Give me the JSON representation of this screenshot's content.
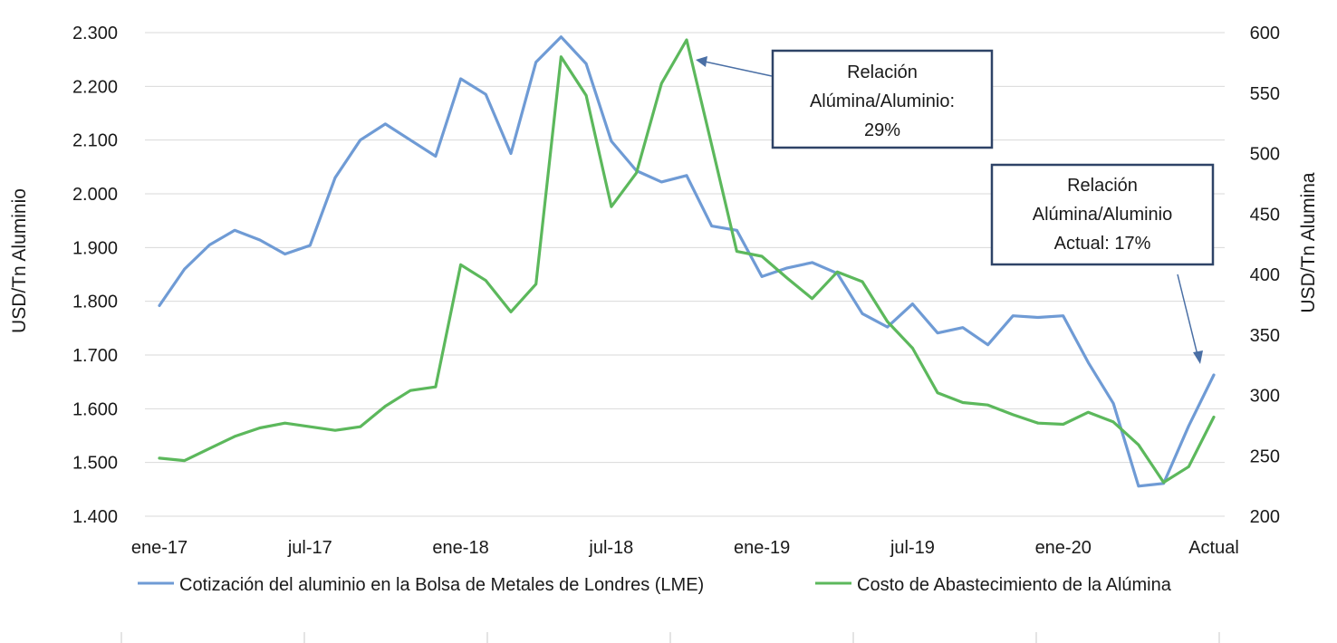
{
  "chart_data": {
    "type": "line",
    "x_tick_labels": [
      "ene-17",
      "jul-17",
      "ene-18",
      "jul-18",
      "ene-19",
      "jul-19",
      "ene-20",
      "Actual"
    ],
    "x": [
      "ene-17",
      "feb-17",
      "mar-17",
      "abr-17",
      "may-17",
      "jun-17",
      "jul-17",
      "ago-17",
      "sep-17",
      "oct-17",
      "nov-17",
      "dic-17",
      "ene-18",
      "feb-18",
      "mar-18",
      "abr-18",
      "may-18",
      "jun-18",
      "jul-18",
      "ago-18",
      "sep-18",
      "oct-18",
      "nov-18",
      "dic-18",
      "ene-19",
      "feb-19",
      "mar-19",
      "abr-19",
      "may-19",
      "jun-19",
      "jul-19",
      "ago-19",
      "sep-19",
      "oct-19",
      "nov-19",
      "dic-19",
      "ene-20",
      "feb-20",
      "mar-20",
      "abr-20",
      "may-20",
      "jun-20",
      "Actual"
    ],
    "ylabel_left": "USD/Tn Aluminio",
    "ylabel_right": "USD/Tn Alumina",
    "y_left_ticks": [
      "1.400",
      "1.500",
      "1.600",
      "1.700",
      "1.800",
      "1.900",
      "2.000",
      "2.100",
      "2.200",
      "2.300"
    ],
    "y_right_ticks": [
      "200",
      "250",
      "300",
      "350",
      "400",
      "450",
      "500",
      "550",
      "600"
    ],
    "ylim_left": [
      1400,
      2300
    ],
    "ylim_right": [
      200,
      600
    ],
    "grid": "horizontal",
    "legend_position": "bottom",
    "series": [
      {
        "name": "Cotización del aluminio en la Bolsa de Metales de Londres (LME)",
        "axis": "left",
        "color": "#6f9bd5",
        "values": [
          1792,
          1860,
          1905,
          1932,
          1914,
          1888,
          1904,
          2030,
          2100,
          2130,
          2100,
          2070,
          2214,
          2185,
          2075,
          2245,
          2292,
          2242,
          2098,
          2043,
          2022,
          2034,
          1940,
          1932,
          1846,
          1862,
          1872,
          1852,
          1777,
          1752,
          1795,
          1741,
          1751,
          1719,
          1773,
          1770,
          1773,
          1686,
          1610,
          1456,
          1461,
          1568,
          1663
        ]
      },
      {
        "name": "Costo de Abastecimiento de la Alúmina",
        "axis": "right",
        "color": "#5cb85c",
        "values": [
          248,
          246,
          256,
          266,
          273,
          277,
          274,
          271,
          274,
          291,
          304,
          307,
          408,
          395,
          369,
          392,
          580,
          548,
          456,
          484,
          558,
          594,
          507,
          419,
          415,
          397,
          380,
          402,
          394,
          361,
          339,
          302,
          294,
          292,
          284,
          277,
          276,
          286,
          278,
          259,
          228,
          241,
          282
        ]
      }
    ],
    "annotations": [
      {
        "lines": [
          "Relación",
          "Alúmina/Aluminio:",
          "29%"
        ]
      },
      {
        "lines": [
          "Relación",
          "Alúmina/Aluminio",
          "Actual: 17%"
        ]
      }
    ],
    "colors": {
      "box_border": "#2e4367",
      "arrow": "#4a6fa5",
      "grid": "#d9d9d9"
    }
  }
}
